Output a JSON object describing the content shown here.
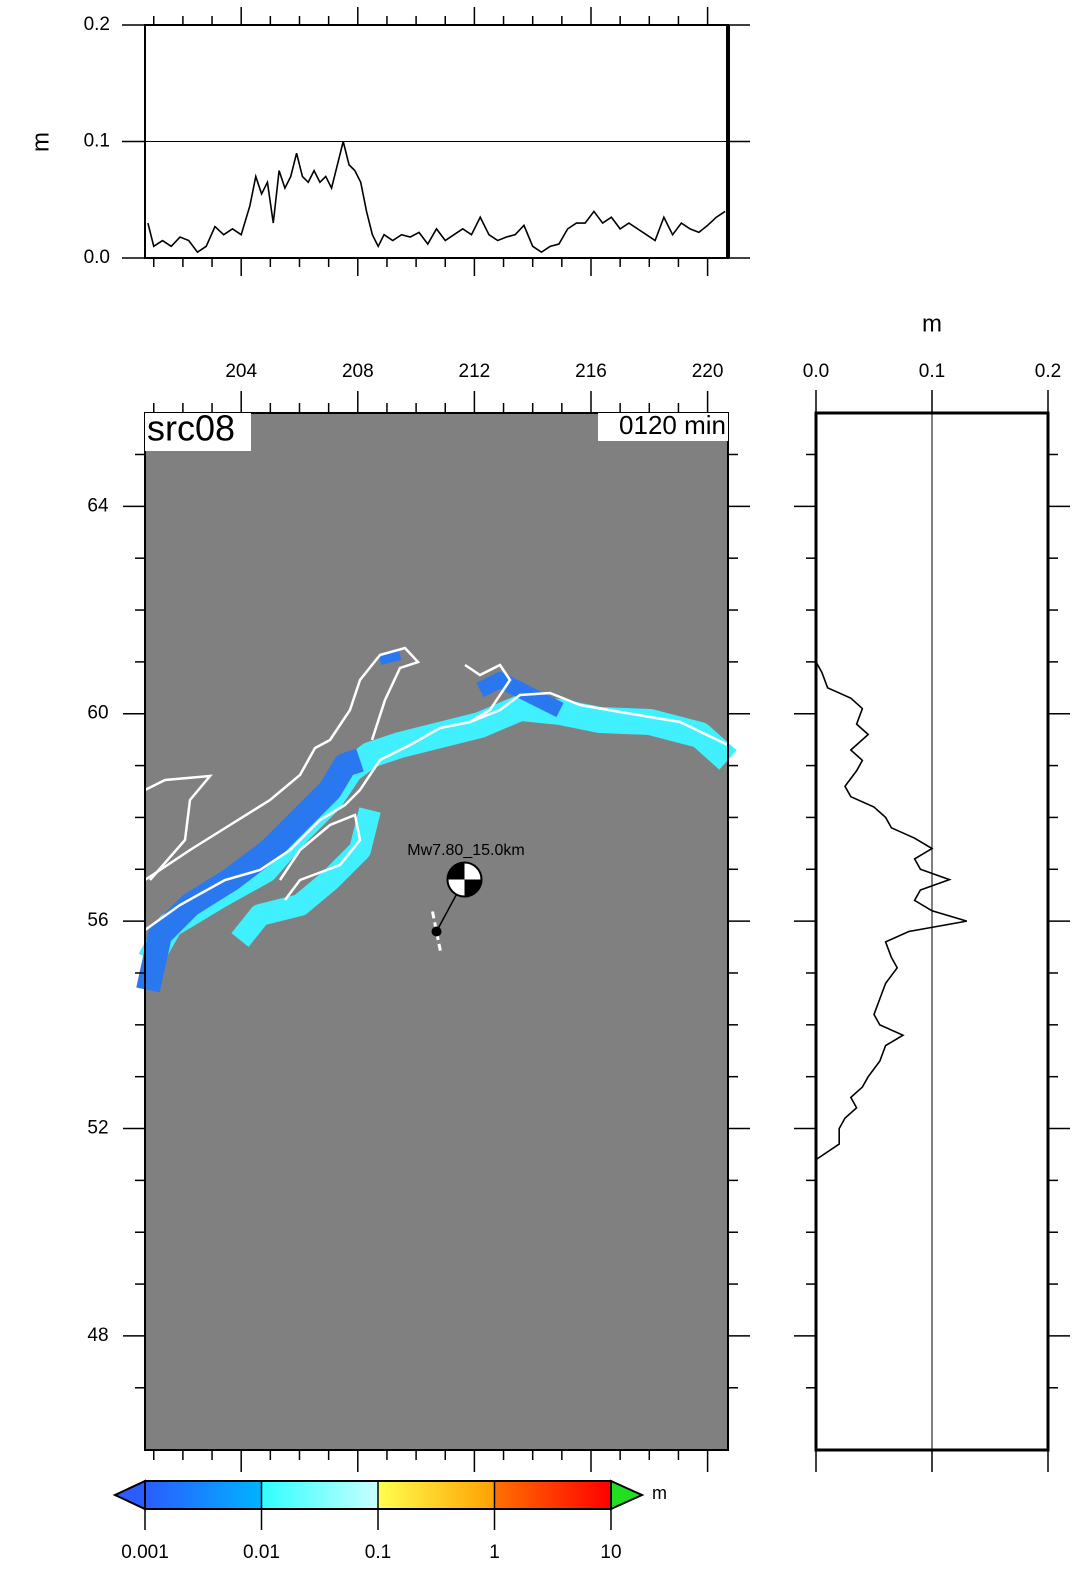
{
  "chart_data": [
    {
      "type": "line",
      "ylabel": "m",
      "xlim": [
        200.7,
        220.7
      ],
      "ylim": [
        0,
        0.2
      ],
      "yticks": [
        {
          "value": 0,
          "label": "0.0"
        },
        0.1,
        0.2
      ],
      "xticks": [
        204,
        208,
        212,
        216,
        220
      ],
      "xminor": [
        201,
        202,
        203,
        205,
        206,
        207,
        209,
        210,
        211,
        213,
        214,
        215,
        217,
        218,
        219
      ],
      "grid": true,
      "color": "#000000",
      "x": [
        200.8,
        201.0,
        201.3,
        201.6,
        201.9,
        202.2,
        202.5,
        202.8,
        203.1,
        203.4,
        203.7,
        204.0,
        204.3,
        204.5,
        204.7,
        204.9,
        205.1,
        205.3,
        205.5,
        205.7,
        205.9,
        206.1,
        206.3,
        206.5,
        206.7,
        206.9,
        207.1,
        207.3,
        207.5,
        207.7,
        207.9,
        208.1,
        208.3,
        208.5,
        208.7,
        208.9,
        209.2,
        209.5,
        209.8,
        210.1,
        210.4,
        210.7,
        211.0,
        211.3,
        211.6,
        211.9,
        212.2,
        212.5,
        212.8,
        213.1,
        213.4,
        213.7,
        214.0,
        214.3,
        214.6,
        214.9,
        215.2,
        215.5,
        215.8,
        216.1,
        216.4,
        216.7,
        217.0,
        217.3,
        217.6,
        217.9,
        218.2,
        218.5,
        218.8,
        219.1,
        219.4,
        219.7,
        220.0,
        220.3,
        220.6
      ],
      "values": [
        0.03,
        0.01,
        0.015,
        0.01,
        0.018,
        0.015,
        0.005,
        0.01,
        0.027,
        0.02,
        0.025,
        0.02,
        0.045,
        0.07,
        0.055,
        0.065,
        0.03,
        0.075,
        0.06,
        0.07,
        0.09,
        0.07,
        0.065,
        0.075,
        0.065,
        0.07,
        0.06,
        0.08,
        0.1,
        0.08,
        0.075,
        0.065,
        0.04,
        0.02,
        0.01,
        0.02,
        0.015,
        0.02,
        0.018,
        0.022,
        0.012,
        0.025,
        0.015,
        0.02,
        0.025,
        0.02,
        0.035,
        0.02,
        0.015,
        0.018,
        0.02,
        0.028,
        0.01,
        0.005,
        0.01,
        0.012,
        0.025,
        0.03,
        0.03,
        0.04,
        0.03,
        0.035,
        0.025,
        0.03,
        0.025,
        0.02,
        0.015,
        0.035,
        0.02,
        0.03,
        0.025,
        0.022,
        0.028,
        0.035,
        0.04
      ]
    },
    {
      "type": "map",
      "title": "src08",
      "time_label": "0120 min",
      "annotation": "Mw7.80_15.0km",
      "epicenter": {
        "lon": 210.7,
        "lat": 55.8
      },
      "xlim": [
        200.7,
        220.7
      ],
      "ylim": [
        45.8,
        65.8
      ],
      "xticks": [
        204,
        208,
        212,
        216,
        220
      ],
      "xminor": [
        201,
        202,
        203,
        205,
        206,
        207,
        209,
        210,
        211,
        213,
        214,
        215,
        217,
        218,
        219
      ],
      "yticks": [
        48,
        52,
        56,
        60,
        64
      ],
      "yminor": [
        47,
        49,
        50,
        51,
        53,
        54,
        55,
        57,
        58,
        59,
        61,
        62,
        63,
        65
      ],
      "colorbar": {
        "scale": "log",
        "ticks": [
          0.001,
          0.01,
          0.1,
          1,
          10
        ],
        "unit": "m"
      }
    },
    {
      "type": "line",
      "orientation": "vertical",
      "xlabel": "m",
      "xlim": [
        0,
        0.2
      ],
      "xticks": [
        {
          "value": 0,
          "label": "0.0"
        },
        0.1,
        0.2
      ],
      "ylim": [
        45.8,
        65.8
      ],
      "yticks": [
        48,
        52,
        56,
        60,
        64
      ],
      "yminor": [
        47,
        49,
        50,
        51,
        53,
        54,
        55,
        57,
        58,
        59,
        61,
        62,
        63,
        65
      ],
      "grid": true,
      "color": "#000000",
      "y": [
        61.0,
        60.8,
        60.5,
        60.3,
        60.1,
        59.8,
        59.6,
        59.3,
        59.1,
        58.9,
        58.6,
        58.4,
        58.2,
        58.0,
        57.8,
        57.6,
        57.4,
        57.2,
        57.0,
        56.8,
        56.6,
        56.4,
        56.2,
        56.0,
        55.8,
        55.6,
        55.3,
        55.1,
        54.8,
        54.5,
        54.2,
        54.0,
        53.8,
        53.6,
        53.3,
        53.0,
        52.8,
        52.6,
        52.4,
        52.2,
        52.0,
        51.7,
        51.4
      ],
      "values": [
        0.0,
        0.005,
        0.01,
        0.03,
        0.04,
        0.035,
        0.045,
        0.03,
        0.04,
        0.035,
        0.025,
        0.03,
        0.05,
        0.06,
        0.065,
        0.085,
        0.1,
        0.085,
        0.09,
        0.115,
        0.09,
        0.085,
        0.1,
        0.13,
        0.08,
        0.06,
        0.065,
        0.07,
        0.06,
        0.055,
        0.05,
        0.055,
        0.075,
        0.06,
        0.055,
        0.045,
        0.04,
        0.03,
        0.035,
        0.025,
        0.02,
        0.02,
        0.0
      ]
    }
  ]
}
